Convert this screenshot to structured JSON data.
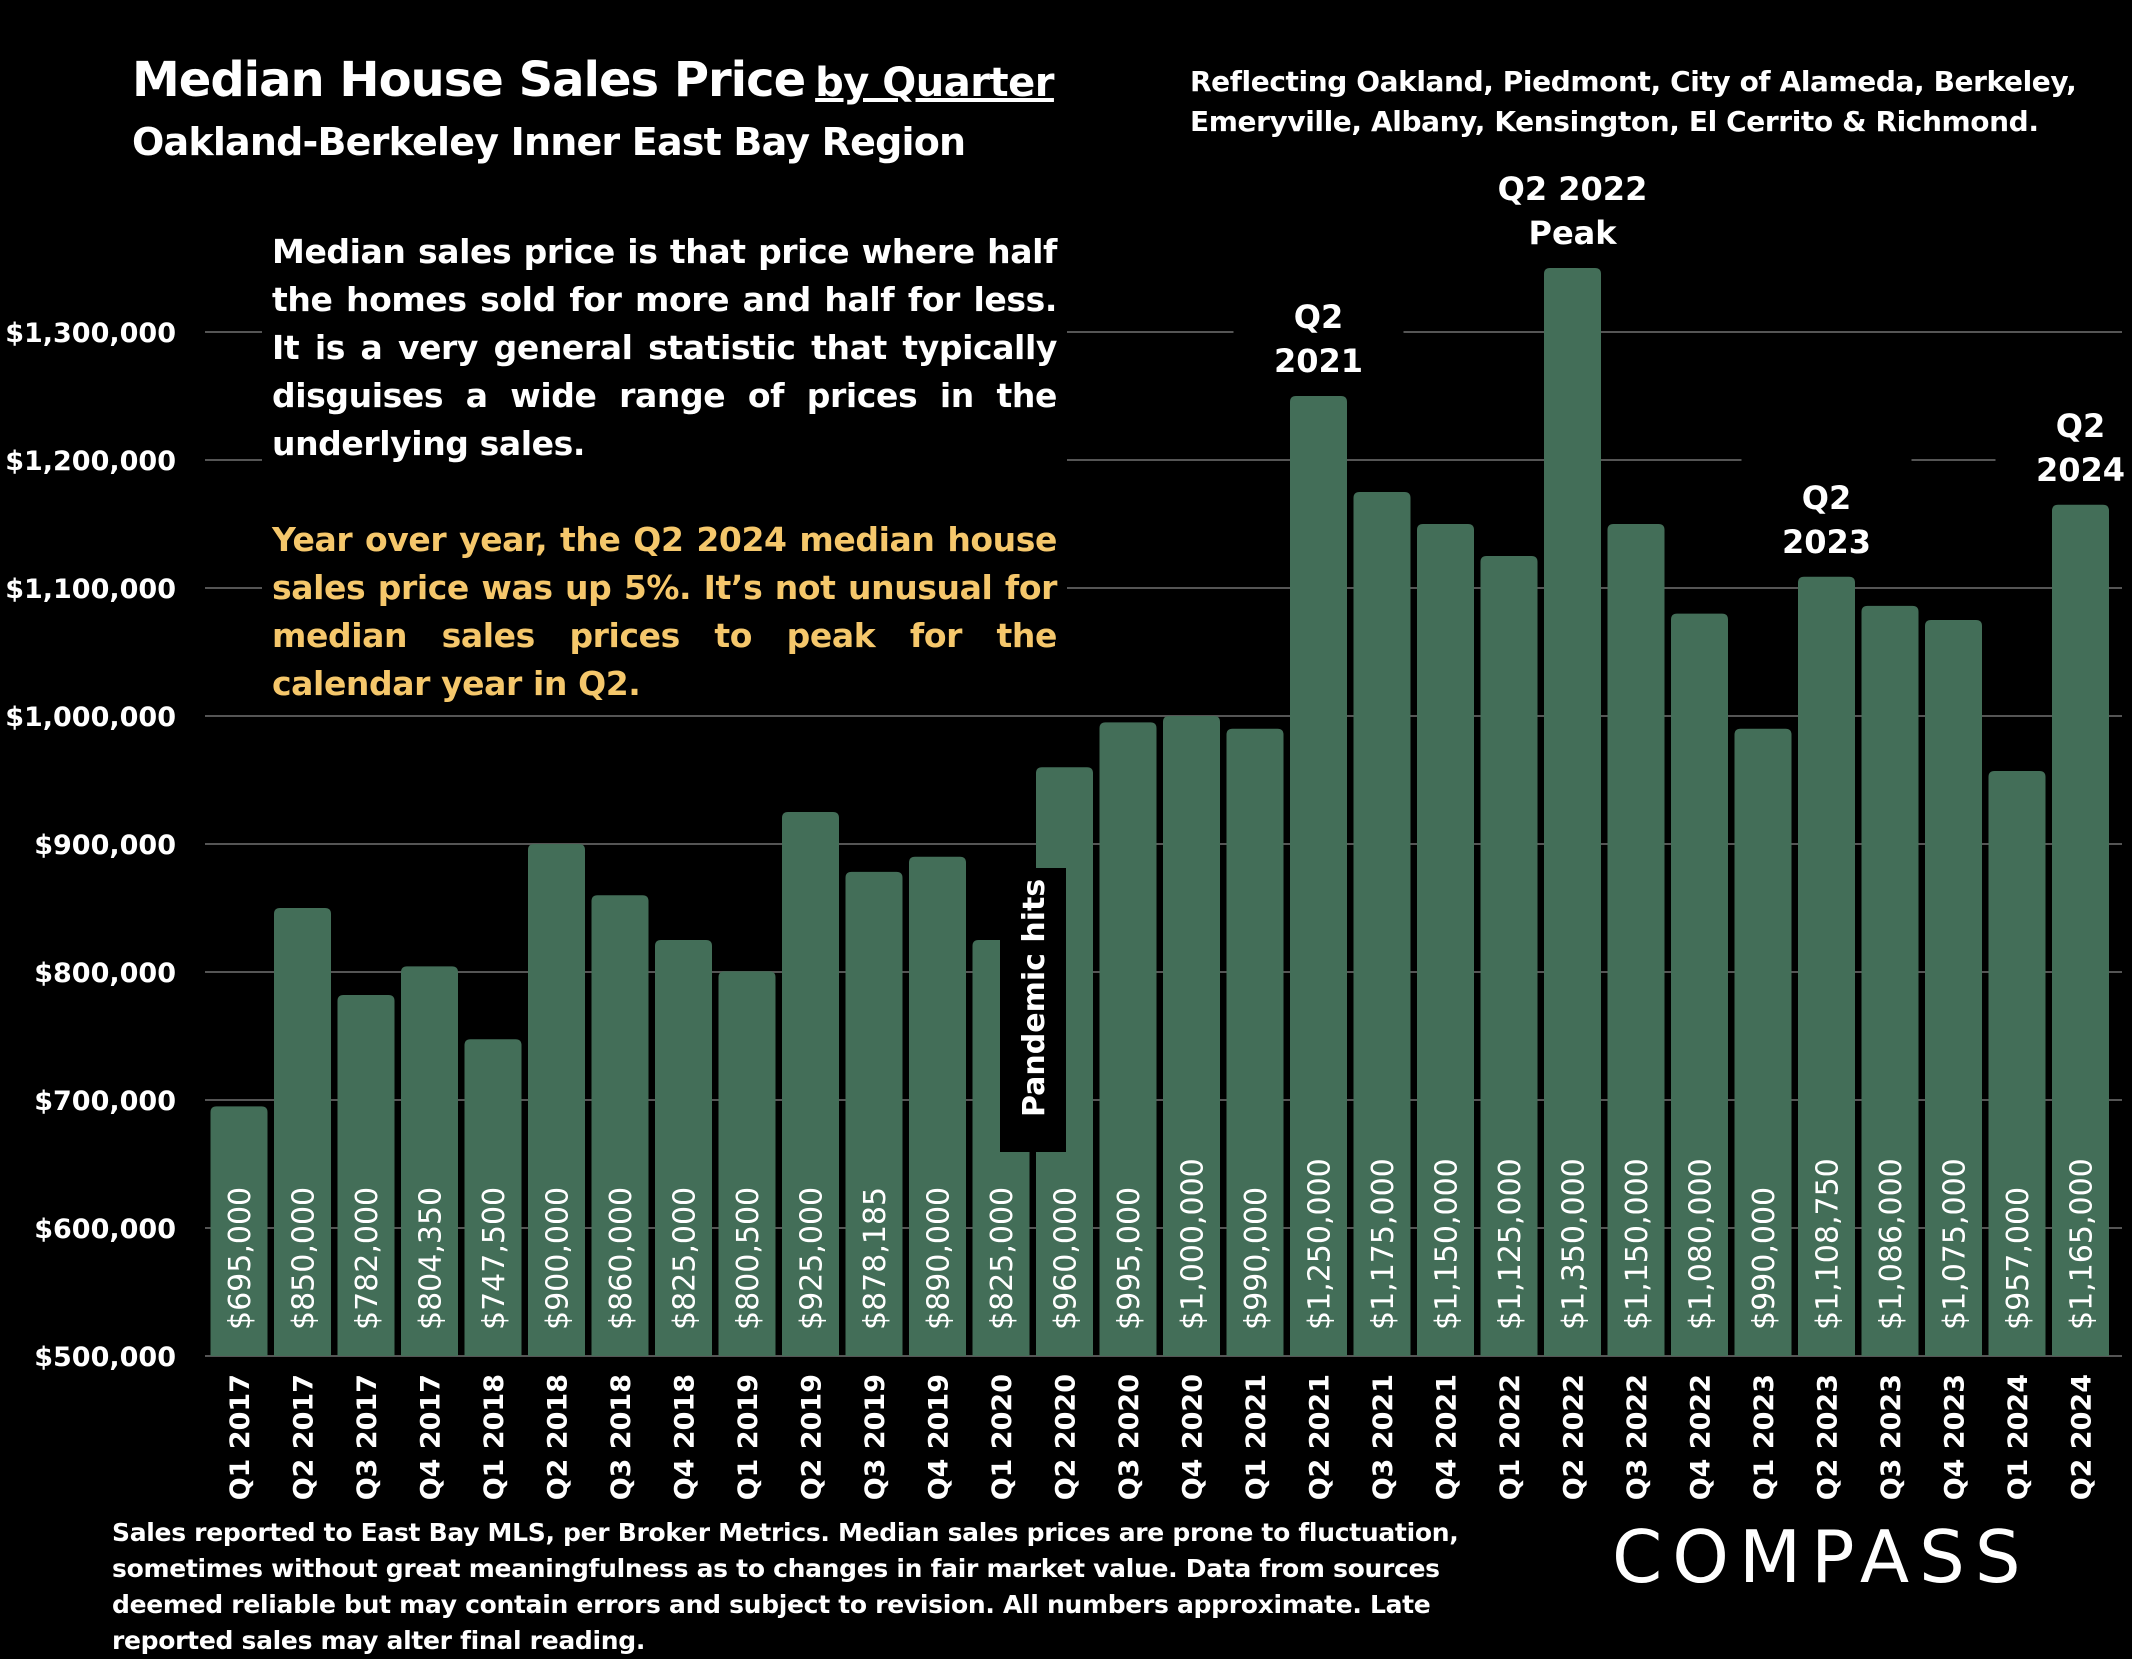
{
  "header": {
    "title": "Median House Sales Price",
    "title_suffix": "by Quarter",
    "subtitle": "Oakland-Berkeley Inner East Bay Region",
    "region_note_line1": "Reflecting Oakland, Piedmont, City of Alameda, Berkeley,",
    "region_note_line2": "Emeryville, Albany, Kensington, El Cerrito & Richmond."
  },
  "explanation": {
    "paragraph1": "Median sales price is that price where half the homes sold for more and half for less. It is a very general statistic that typically disguises a wide range of prices in the underlying sales.",
    "paragraph2": "Year over year, the Q2 2024 median house sales price was up 5%. It’s not unusual for median sales prices to peak for the calendar year in Q2."
  },
  "footer": {
    "note": "Sales reported to East Bay MLS, per Broker Metrics. Median sales prices are prone to fluctuation, sometimes without great meaningfulness as to changes in fair market value. Data from sources deemed reliable but may contain errors and subject to revision. All numbers approximate. Late reported sales may alter final reading.",
    "logo": "COMPASS"
  },
  "colors": {
    "bar": "#436e58",
    "highlight_text": "#f5c76b",
    "background": "#000000",
    "grid": "#555555"
  },
  "chart_data": {
    "type": "bar",
    "title": "Median House Sales Price by Quarter",
    "categories": [
      "Q1 2017",
      "Q2 2017",
      "Q3 2017",
      "Q4 2017",
      "Q1 2018",
      "Q2 2018",
      "Q3 2018",
      "Q4 2018",
      "Q1 2019",
      "Q2 2019",
      "Q3 2019",
      "Q4 2019",
      "Q1 2020",
      "Q2 2020",
      "Q3 2020",
      "Q4 2020",
      "Q1 2021",
      "Q2 2021",
      "Q3 2021",
      "Q4 2021",
      "Q1 2022",
      "Q2 2022",
      "Q3 2022",
      "Q4 2022",
      "Q1 2023",
      "Q2 2023",
      "Q3 2023",
      "Q4 2023",
      "Q1 2024",
      "Q2 2024"
    ],
    "values": [
      695000,
      850000,
      782000,
      804350,
      747500,
      900000,
      860000,
      825000,
      800500,
      925000,
      878185,
      890000,
      825000,
      960000,
      995000,
      1000000,
      990000,
      1250000,
      1175000,
      1150000,
      1125000,
      1350000,
      1150000,
      1080000,
      990000,
      1108750,
      1086000,
      1075000,
      957000,
      1165000
    ],
    "data_labels": [
      "$695,000",
      "$850,000",
      "$782,000",
      "$804,350",
      "$747,500",
      "$900,000",
      "$860,000",
      "$825,000",
      "$800,500",
      "$925,000",
      "$878,185",
      "$890,000",
      "$825,000",
      "$960,000",
      "$995,000",
      "$1,000,000",
      "$990,000",
      "$1,250,000",
      "$1,175,000",
      "$1,150,000",
      "$1,125,000",
      "$1,350,000",
      "$1,150,000",
      "$1,080,000",
      "$990,000",
      "$1,108,750",
      "$1,086,000",
      "$1,075,000",
      "$957,000",
      "$1,165,000"
    ],
    "ylim": [
      500000,
      1350000
    ],
    "yticks": [
      500000,
      600000,
      700000,
      800000,
      900000,
      1000000,
      1100000,
      1200000,
      1300000
    ],
    "ytick_labels": [
      "$500,000",
      "$600,000",
      "$700,000",
      "$800,000",
      "$900,000",
      "$1,000,000",
      "$1,100,000",
      "$1,200,000",
      "$1,300,000"
    ],
    "grid": true,
    "annotations": [
      {
        "category": "Q2 2021",
        "lines": [
          "Q2",
          "2021"
        ]
      },
      {
        "category": "Q2 2022",
        "lines": [
          "Q2 2022",
          "Peak"
        ]
      },
      {
        "category": "Q2 2023",
        "lines": [
          "Q2",
          "2023"
        ]
      },
      {
        "category": "Q2 2024",
        "lines": [
          "Q2",
          "2024"
        ]
      },
      {
        "category": "Q1 2020",
        "lines": [
          "Pandemic hits"
        ],
        "style": "vertical-box"
      }
    ]
  }
}
